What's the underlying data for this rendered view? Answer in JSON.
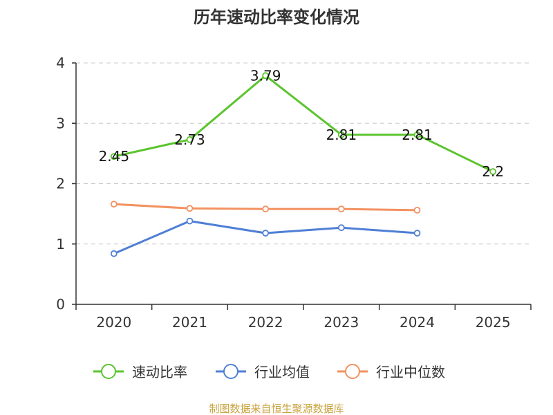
{
  "chart_data": {
    "type": "line",
    "title": "历年速动比率变化情况",
    "categories": [
      "2020",
      "2021",
      "2022",
      "2023",
      "2024",
      "2025"
    ],
    "ylim": [
      0,
      4
    ],
    "yticks": [
      0,
      1,
      2,
      3,
      4
    ],
    "grid": true,
    "legend_position": "bottom",
    "series": [
      {
        "name": "速动比率",
        "color": "#5bc42e",
        "values": [
          2.45,
          2.73,
          3.79,
          2.81,
          2.81,
          2.2
        ],
        "labels": [
          "2.45",
          "2.73",
          "3.79",
          "2.81",
          "2.81",
          "2.2"
        ],
        "show_labels": true
      },
      {
        "name": "行业均值",
        "color": "#4f7fd6",
        "values": [
          0.84,
          1.38,
          1.18,
          1.27,
          1.18,
          null
        ],
        "show_labels": false
      },
      {
        "name": "行业中位数",
        "color": "#f39160",
        "values": [
          1.66,
          1.59,
          1.58,
          1.58,
          1.56,
          null
        ],
        "show_labels": false
      }
    ]
  },
  "source": "制图数据来自恒生聚源数据库"
}
